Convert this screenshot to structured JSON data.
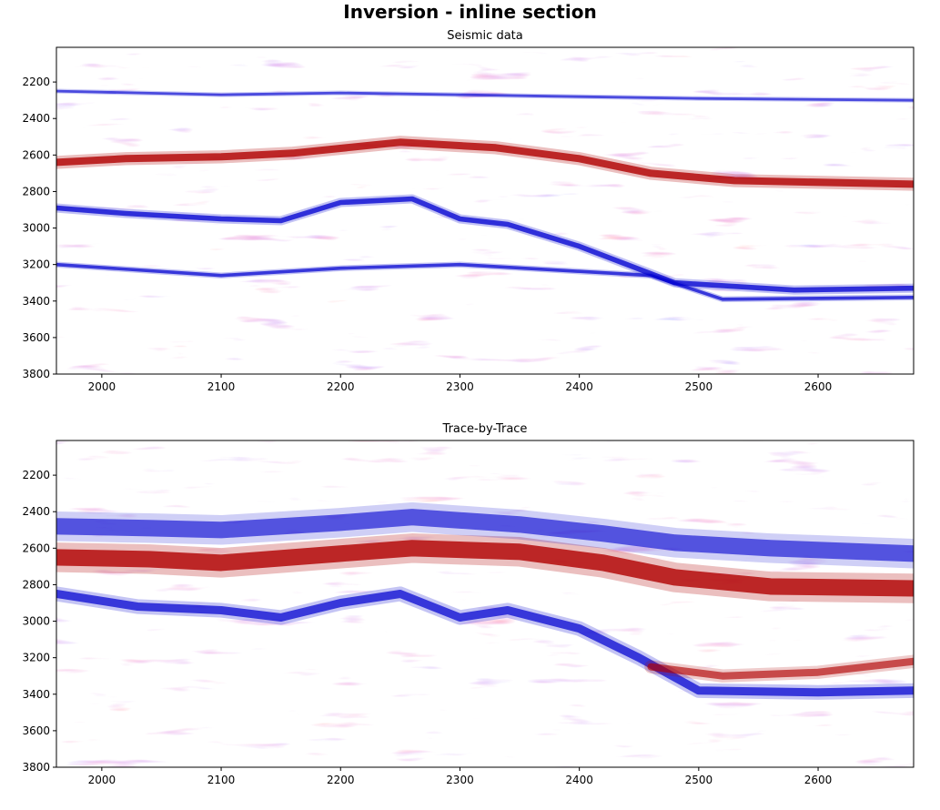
{
  "figure": {
    "suptitle": "Inversion - inline section"
  },
  "colors": {
    "negative": "#0000d0",
    "positive": "#b00000",
    "neutral": "#ffffff",
    "colormap": "seismic"
  },
  "chart_data": [
    {
      "type": "heatmap",
      "title": "Seismic data",
      "xlabel": "",
      "ylabel": "",
      "xlim": [
        1962,
        2680
      ],
      "ylim": [
        3800,
        2010
      ],
      "y_inverted": true,
      "x_ticks": [
        2000,
        2100,
        2200,
        2300,
        2400,
        2500,
        2600
      ],
      "y_ticks": [
        2200,
        2400,
        2600,
        2800,
        3000,
        3200,
        3400,
        3600,
        3800
      ],
      "horizons": [
        {
          "x": [
            1962,
            2020,
            2100,
            2160,
            2250,
            2330,
            2400,
            2460,
            2530,
            2680
          ],
          "y": [
            2640,
            2620,
            2610,
            2590,
            2530,
            2560,
            2620,
            2700,
            2740,
            2760
          ],
          "amplitude": 1.0,
          "width": 40
        },
        {
          "x": [
            1962,
            2020,
            2100,
            2150,
            2200,
            2260,
            2300,
            2340,
            2400,
            2480,
            2580,
            2680
          ],
          "y": [
            2890,
            2920,
            2950,
            2960,
            2860,
            2840,
            2950,
            2980,
            3100,
            3300,
            3340,
            3330
          ],
          "amplitude": -0.95,
          "width": 28
        },
        {
          "x": [
            1962,
            2100,
            2200,
            2300,
            2400,
            2500,
            2680
          ],
          "y": [
            2250,
            2270,
            2260,
            2270,
            2280,
            2290,
            2300
          ],
          "amplitude": -0.8,
          "width": 14
        },
        {
          "x": [
            1962,
            2100,
            2200,
            2300,
            2460,
            2520,
            2680
          ],
          "y": [
            3200,
            3260,
            3220,
            3200,
            3260,
            3390,
            3380
          ],
          "amplitude": -0.9,
          "width": 18
        }
      ]
    },
    {
      "type": "heatmap",
      "title": "Trace-by-Trace",
      "xlabel": "",
      "ylabel": "",
      "xlim": [
        1962,
        2680
      ],
      "ylim": [
        3800,
        2010
      ],
      "y_inverted": true,
      "x_ticks": [
        2000,
        2100,
        2200,
        2300,
        2400,
        2500,
        2600
      ],
      "y_ticks": [
        2200,
        2400,
        2600,
        2800,
        3000,
        3200,
        3400,
        3600,
        3800
      ],
      "horizons": [
        {
          "x": [
            1962,
            2040,
            2100,
            2200,
            2260,
            2350,
            2420,
            2480,
            2560,
            2680
          ],
          "y": [
            2650,
            2660,
            2680,
            2630,
            2600,
            2620,
            2680,
            2760,
            2810,
            2820
          ],
          "amplitude": 1.0,
          "width": 90
        },
        {
          "x": [
            1962,
            2040,
            2100,
            2200,
            2260,
            2350,
            2420,
            2480,
            2560,
            2680
          ],
          "y": [
            2480,
            2490,
            2500,
            2460,
            2430,
            2470,
            2520,
            2570,
            2600,
            2630
          ],
          "amplitude": -0.75,
          "width": 90
        },
        {
          "x": [
            1962,
            2030,
            2100,
            2150,
            2200,
            2250,
            2300,
            2340,
            2400,
            2450,
            2500,
            2600,
            2680
          ],
          "y": [
            2850,
            2920,
            2940,
            2980,
            2900,
            2850,
            2980,
            2940,
            3040,
            3200,
            3380,
            3390,
            3380
          ],
          "amplitude": -0.9,
          "width": 45
        },
        {
          "x": [
            2460,
            2520,
            2600,
            2680
          ],
          "y": [
            3250,
            3300,
            3280,
            3220
          ],
          "amplitude": 0.8,
          "width": 40
        }
      ]
    }
  ]
}
